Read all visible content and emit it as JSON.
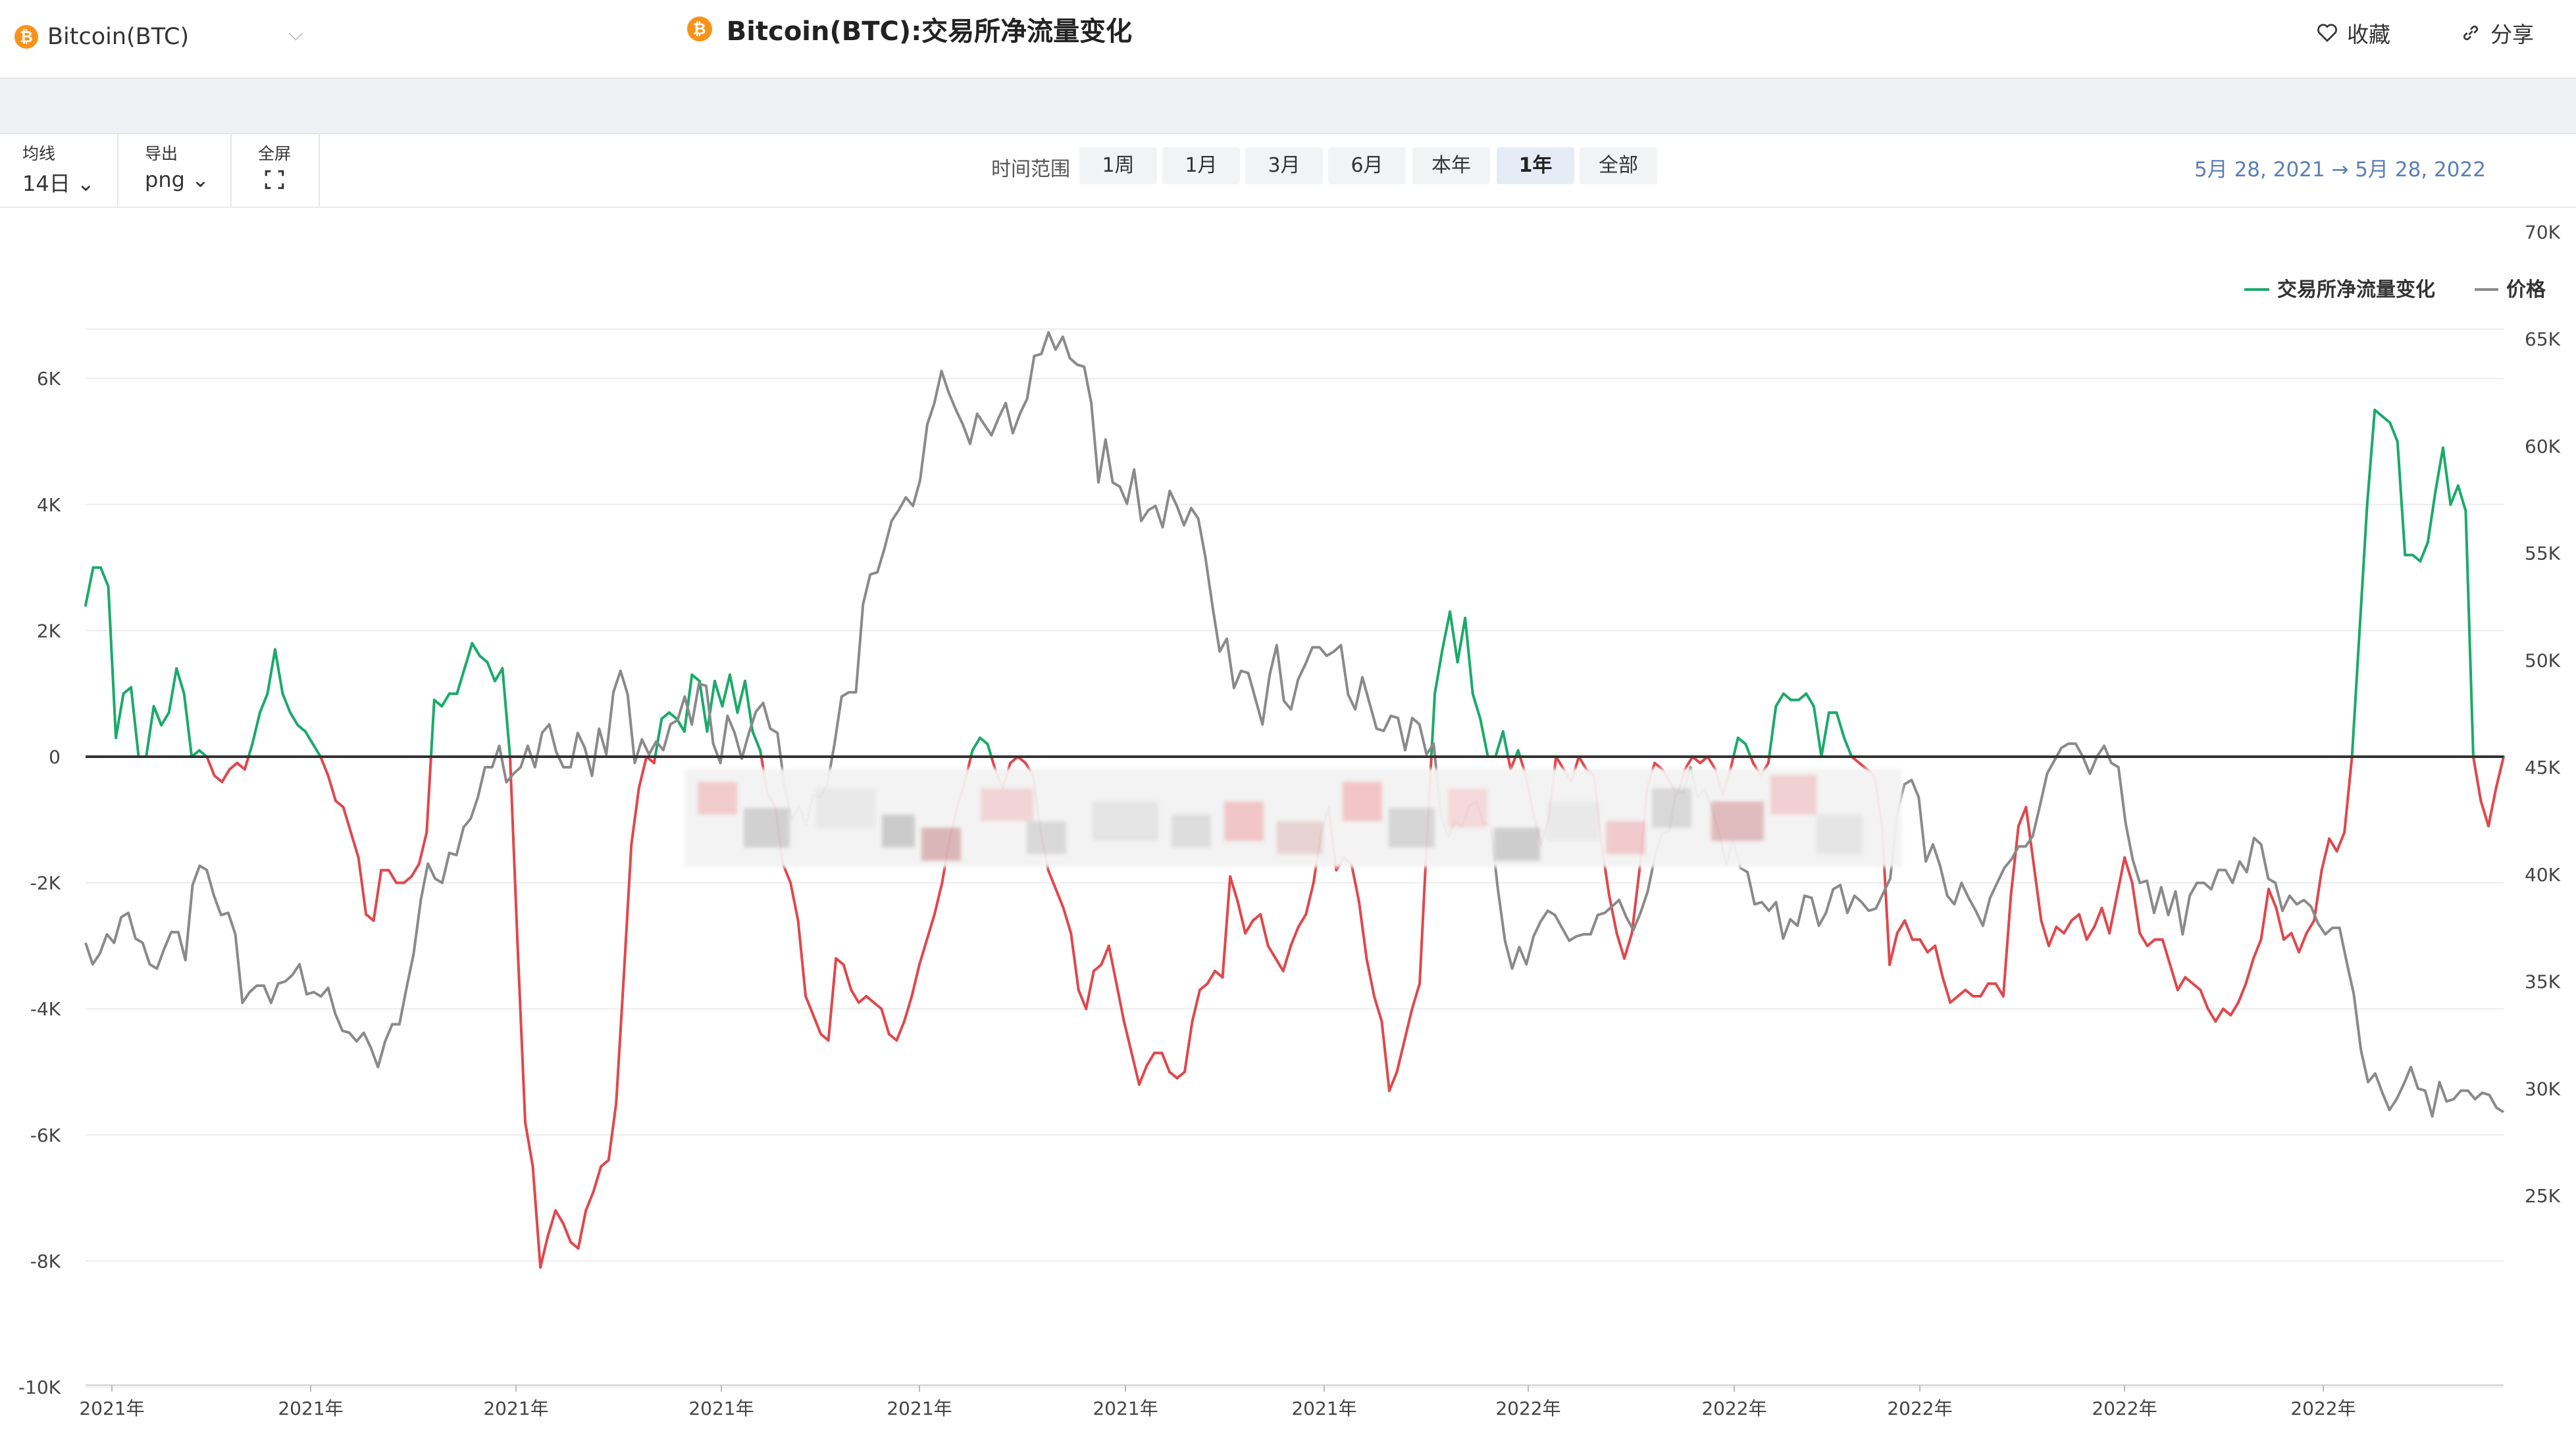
{
  "header": {
    "asset": "Bitcoin(BTC)",
    "coin_glyph": "₿",
    "title": "Bitcoin(BTC):交易所净流量变化",
    "favorite_label": "收藏",
    "share_label": "分享"
  },
  "controls": {
    "ma_label": "均线",
    "ma_value": "14日",
    "export_label": "导出",
    "export_value": "png",
    "fullscreen_label": "全屏",
    "range_label": "时间范围",
    "ranges": [
      "1周",
      "1月",
      "3月",
      "6月",
      "本年",
      "1年",
      "全部"
    ],
    "active_range": "1年",
    "date_range": "5月 28, 2021  →  5月 28, 2022"
  },
  "colors": {
    "positive": "#1aaa6a",
    "negative": "#e0474c",
    "price": "#8a8a8a",
    "zero_line": "#333333"
  },
  "chart_data": {
    "type": "line",
    "legend": [
      "交易所净流量变化",
      "价格"
    ],
    "legend_position": "top-right",
    "x_tick_labels": [
      "2021年",
      "2021年",
      "2021年",
      "2021年",
      "2021年",
      "2021年",
      "2021年",
      "2022年",
      "2022年",
      "2022年",
      "2022年",
      "2022年"
    ],
    "y_left": {
      "ticks": [
        "6K",
        "4K",
        "2K",
        "0",
        "-2K",
        "-4K",
        "-6K",
        "-8K",
        "-10K"
      ],
      "range": [
        -10000,
        6000
      ]
    },
    "y_right": {
      "ticks": [
        "70K",
        "65K",
        "60K",
        "55K",
        "50K",
        "45K",
        "40K",
        "35K",
        "30K",
        "25K"
      ],
      "range": [
        25000,
        70000
      ]
    },
    "grid": "horizontal",
    "series": [
      {
        "name": "交易所净流量变化",
        "axis": "left",
        "values": [
          2400,
          3000,
          3000,
          2700,
          300,
          1000,
          1100,
          0,
          0,
          800,
          500,
          700,
          1400,
          1000,
          0,
          100,
          0,
          -300,
          -400,
          -200,
          -100,
          -200,
          200,
          700,
          1000,
          1700,
          1000,
          700,
          500,
          400,
          200,
          0,
          -300,
          -700,
          -800,
          -1200,
          -1600,
          -2500,
          -2600,
          -1800,
          -1800,
          -2000,
          -2000,
          -1900,
          -1700,
          -1200,
          900,
          800,
          1000,
          1000,
          1400,
          1800,
          1600,
          1500,
          1200,
          1400,
          0,
          -3000,
          -5800,
          -6500,
          -8100,
          -7600,
          -7200,
          -7400,
          -7700,
          -7800,
          -7200,
          -6900,
          -6500,
          -6400,
          -5500,
          -3500,
          -1400,
          -500,
          0,
          -100,
          600,
          700,
          600,
          400,
          1300,
          1200,
          400,
          1200,
          800,
          1300,
          700,
          1200,
          400,
          100,
          -600,
          -800,
          -1700,
          -2000,
          -2600,
          -3800,
          -4100,
          -4400,
          -4500,
          -3200,
          -3300,
          -3700,
          -3900,
          -3800,
          -3900,
          -4000,
          -4400,
          -4500,
          -4200,
          -3800,
          -3300,
          -2900,
          -2500,
          -2000,
          -1300,
          -800,
          -400,
          100,
          300,
          200,
          -200,
          -500,
          -100,
          0,
          -100,
          -300,
          -1200,
          -1800,
          -2100,
          -2400,
          -2800,
          -3700,
          -4000,
          -3400,
          -3300,
          -3000,
          -3600,
          -4200,
          -4700,
          -5200,
          -4900,
          -4700,
          -4700,
          -5000,
          -5100,
          -5000,
          -4200,
          -3700,
          -3600,
          -3400,
          -3500,
          -1900,
          -2300,
          -2800,
          -2600,
          -2500,
          -3000,
          -3200,
          -3400,
          -3000,
          -2700,
          -2500,
          -2000,
          -1200,
          -800,
          -1800,
          -1600,
          -1700,
          -2300,
          -3200,
          -3800,
          -4200,
          -5300,
          -5000,
          -4500,
          -4000,
          -3600,
          -1200,
          1000,
          1700,
          2300,
          1500,
          2200,
          1000,
          600,
          0,
          0,
          400,
          -200,
          100,
          -300,
          -900,
          -1400,
          -1000,
          0,
          -200,
          -400,
          0,
          -200,
          -300,
          -1400,
          -2200,
          -2800,
          -3200,
          -2800,
          -1800,
          -500,
          -100,
          -200,
          -400,
          -600,
          -200,
          0,
          -100,
          0,
          -200,
          -600,
          -200,
          300,
          200,
          -100,
          -300,
          -100,
          800,
          1000,
          900,
          900,
          1000,
          800,
          0,
          700,
          700,
          300,
          0,
          -100,
          -200,
          -300,
          -1100,
          -3300,
          -2800,
          -2600,
          -2900,
          -2900,
          -3100,
          -3000,
          -3500,
          -3900,
          -3800,
          -3700,
          -3800,
          -3800,
          -3600,
          -3600,
          -3800,
          -2200,
          -1100,
          -800,
          -1700,
          -2600,
          -3000,
          -2700,
          -2800,
          -2600,
          -2500,
          -2900,
          -2700,
          -2400,
          -2800,
          -2200,
          -1600,
          -2000,
          -2800,
          -3000,
          -2900,
          -2900,
          -3300,
          -3700,
          -3500,
          -3600,
          -3700,
          -4000,
          -4200,
          -4000,
          -4100,
          -3900,
          -3600,
          -3200,
          -2900,
          -2100,
          -2400,
          -2900,
          -2800,
          -3100,
          -2800,
          -2600,
          -1800,
          -1300,
          -1500,
          -1200,
          0,
          2000,
          4000,
          5500,
          5400,
          5300,
          5000,
          3200,
          3200,
          3100,
          3400,
          4200,
          4900,
          4000,
          4300,
          3900,
          0,
          -700,
          -1100,
          -500,
          0
        ],
        "color_rule": "green when >= 0, red when < 0"
      },
      {
        "name": "价格",
        "axis": "right",
        "values": [
          36800,
          35800,
          36300,
          37200,
          36800,
          38000,
          38200,
          37000,
          36800,
          35800,
          35600,
          36500,
          37300,
          37300,
          36000,
          39500,
          40400,
          40200,
          39000,
          38100,
          38200,
          37200,
          34000,
          34500,
          34800,
          34800,
          34000,
          34900,
          35000,
          35300,
          35800,
          34400,
          34500,
          34300,
          34700,
          33500,
          32700,
          32600,
          32200,
          32600,
          31900,
          31000,
          32200,
          33000,
          33000,
          34700,
          36300,
          38800,
          40500,
          39800,
          39600,
          41000,
          40900,
          42200,
          42600,
          43600,
          45000,
          45000,
          46000,
          44300,
          44700,
          45000,
          46000,
          45000,
          46600,
          47000,
          45700,
          45000,
          45000,
          46600,
          45900,
          44600,
          46800,
          45600,
          48500,
          49500,
          48400,
          45200,
          46300,
          45600,
          46200,
          45800,
          47000,
          47200,
          48300,
          47000,
          48900,
          48800,
          46100,
          45200,
          47400,
          46600,
          45400,
          46600,
          47600,
          48000,
          46800,
          46600,
          44100,
          42500,
          43200,
          42300,
          43700,
          43600,
          44200,
          46100,
          48300,
          48500,
          48500,
          52600,
          54000,
          54100,
          55200,
          56500,
          57000,
          57600,
          57200,
          58400,
          61000,
          62000,
          63500,
          62500,
          61700,
          61000,
          60100,
          61500,
          61000,
          60500,
          61300,
          62000,
          60600,
          61500,
          62200,
          64200,
          64300,
          65300,
          64500,
          65100,
          64100,
          63800,
          63700,
          62000,
          58300,
          60300,
          58300,
          58100,
          57300,
          58900,
          56500,
          57000,
          57200,
          56200,
          57900,
          57200,
          56300,
          57100,
          56600,
          54800,
          52500,
          50400,
          51000,
          48700,
          49500,
          49400,
          48200,
          47000,
          49300,
          50700,
          48100,
          47700,
          49100,
          49800,
          50600,
          50600,
          50200,
          50400,
          50700,
          48400,
          47700,
          49200,
          48000,
          46800,
          46700,
          47400,
          47300,
          45800,
          47300,
          47000,
          45600,
          46100,
          42800,
          41700,
          42500,
          42200,
          43200,
          43400,
          42400,
          42300,
          39300,
          36900,
          35600,
          36600,
          35800,
          37100,
          37800,
          38300,
          38100,
          37500,
          36900,
          37100,
          37200,
          37200,
          38100,
          38200,
          38500,
          38800,
          38000,
          37400,
          38200,
          39200,
          40800,
          41900,
          42000,
          43900,
          43800,
          45000,
          43600,
          44000,
          43100,
          41900,
          40500,
          41600,
          40300,
          40100,
          38600,
          38700,
          38300,
          38700,
          37000,
          37900,
          37600,
          39000,
          38900,
          37600,
          38200,
          39300,
          39500,
          38200,
          39000,
          38700,
          38300,
          38400,
          39100,
          39800,
          42900,
          44200,
          44400,
          43600,
          40600,
          41400,
          40400,
          39000,
          38600,
          39600,
          38900,
          38300,
          37600,
          38900,
          39600,
          40300,
          40700,
          41300,
          41300,
          41800,
          43200,
          44700,
          45300,
          45900,
          46100,
          46100,
          45500,
          44700,
          45500,
          46000,
          45200,
          45000,
          42400,
          40700,
          39600,
          39700,
          38200,
          39400,
          38100,
          39200,
          37200,
          39000,
          39600,
          39600,
          39300,
          40200,
          40200,
          39600,
          40600,
          40100,
          41700,
          41400,
          39800,
          39600,
          38300,
          39000,
          38600,
          38800,
          38500,
          37700,
          37200,
          37500,
          37500,
          35900,
          34400,
          31800,
          30300,
          30700,
          29800,
          29000,
          29500,
          30200,
          31000,
          30000,
          29900,
          28700,
          30300,
          29400,
          29500,
          29900,
          29900,
          29500,
          29800,
          29700,
          29100,
          28900
        ],
        "color": "#8a8a8a"
      }
    ]
  }
}
